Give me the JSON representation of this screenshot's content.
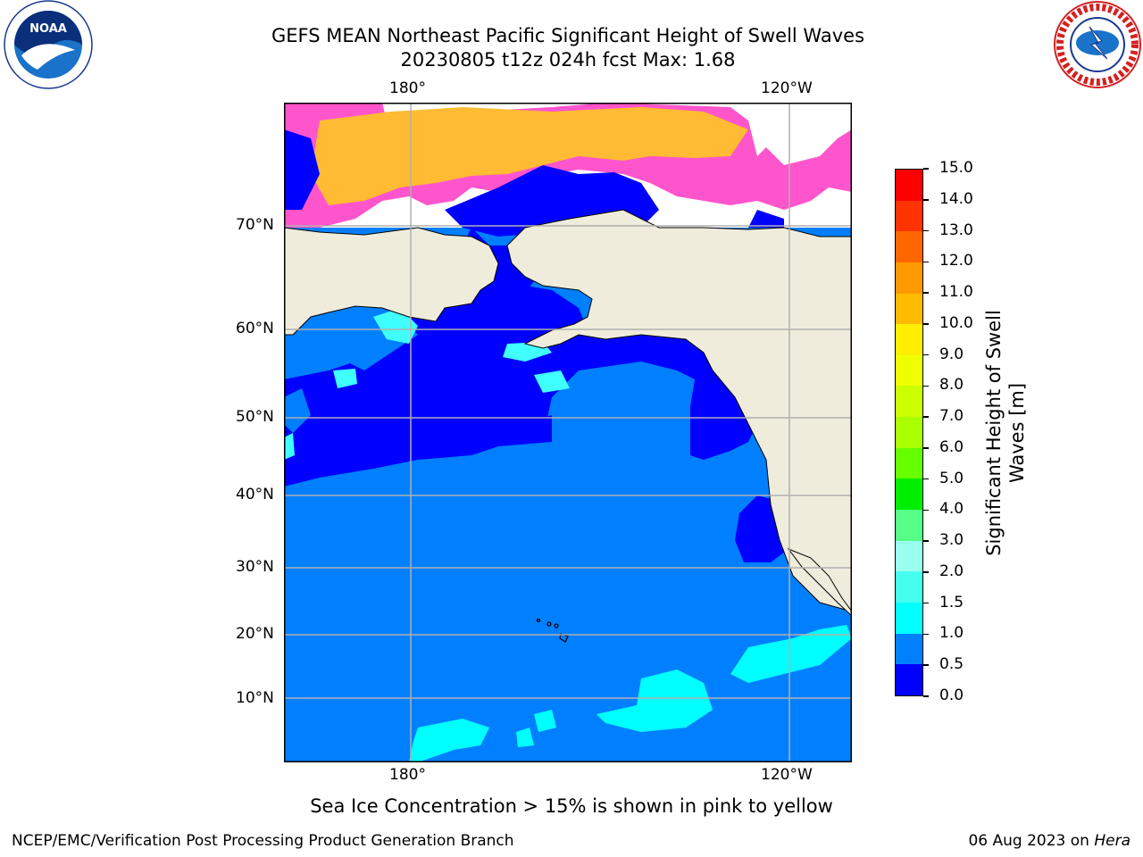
{
  "title": {
    "line1": "GEFS MEAN Northeast Pacific Significant Height of Swell Waves",
    "line2": "20230805 t12z 024h fcst   Max: 1.68"
  },
  "logos": {
    "left_name": "NOAA",
    "right_name": "NATIONAL WEATHER SERVICE"
  },
  "map": {
    "lon_labels": [
      "180°",
      "120°W"
    ],
    "lat_labels": [
      "70°N",
      "60°N",
      "50°N",
      "40°N",
      "30°N",
      "20°N",
      "10°N"
    ],
    "note": "Sea Ice Concentration > 15% is shown in pink to yellow",
    "colors": {
      "land": "#efecdc",
      "ocean_0_0_5": "#0000ff",
      "ocean_0_5_1_0": "#0080ff",
      "ocean_1_0_1_5": "#00ffff",
      "ocean_1_5_2_0": "#40ffff",
      "grid": "#b0b0b0",
      "ice_pink": "#ff55cc",
      "ice_orange": "#ffbb33"
    }
  },
  "colorbar": {
    "label_line1": "Significant Height of Swell",
    "label_line2": "Waves [m]",
    "ticks": [
      "15.0",
      "14.0",
      "13.0",
      "12.0",
      "11.0",
      "10.0",
      "9.0",
      "8.0",
      "7.0",
      "6.0",
      "5.0",
      "4.0",
      "3.0",
      "2.0",
      "1.5",
      "1.0",
      "0.5",
      "0.0"
    ],
    "colors": [
      "#ff0000",
      "#ff3300",
      "#ff6600",
      "#ff9900",
      "#ffbb00",
      "#ffee00",
      "#f0ff00",
      "#ccff00",
      "#aaff00",
      "#66ff00",
      "#00ee00",
      "#55ff88",
      "#99ffee",
      "#44ffee",
      "#00ffff",
      "#0080ff",
      "#0000ff"
    ]
  },
  "footer": {
    "left": "NCEP/EMC/Verification Post Processing Product Generation Branch",
    "right_prefix": "06 Aug 2023 on ",
    "right_italic": "Hera"
  }
}
